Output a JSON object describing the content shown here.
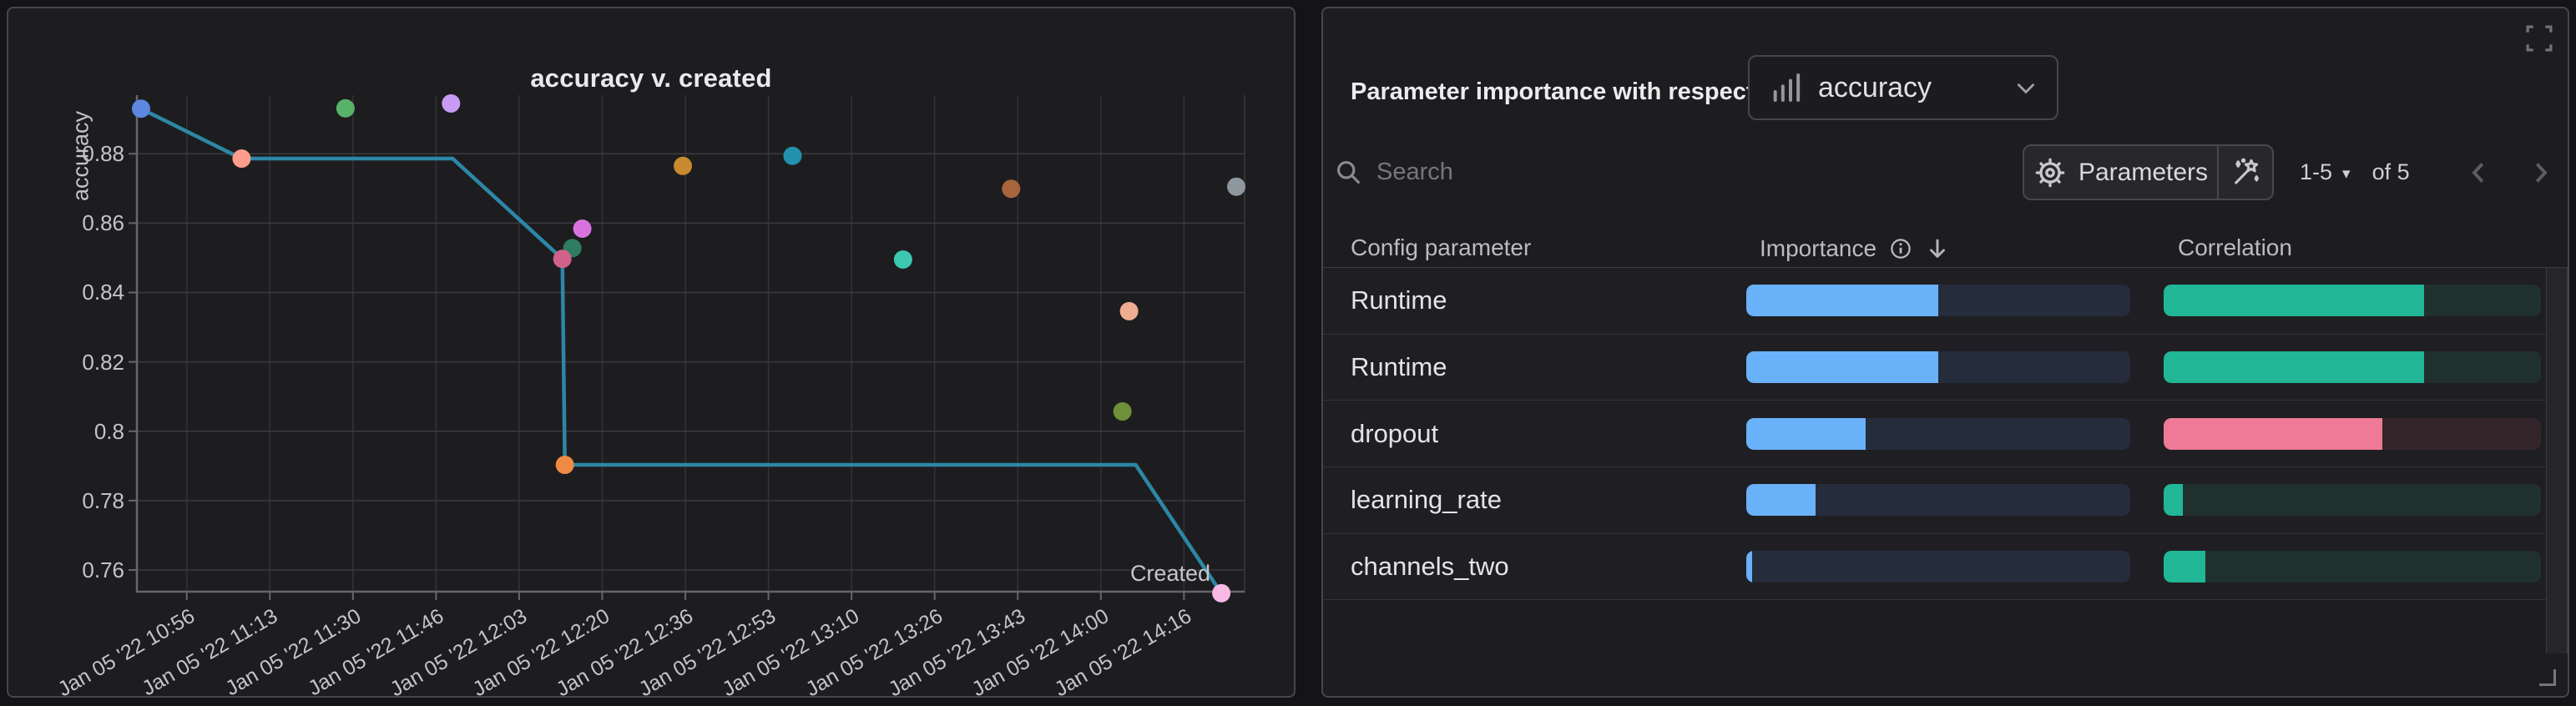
{
  "chart_data": {
    "type": "scatter",
    "title": "accuracy v. created",
    "xlabel": "Created",
    "ylabel": "accuracy",
    "x_tick_labels": [
      "Jan 05 '22 10:56",
      "Jan 05 '22 11:13",
      "Jan 05 '22 11:30",
      "Jan 05 '22 11:46",
      "Jan 05 '22 12:03",
      "Jan 05 '22 12:20",
      "Jan 05 '22 12:36",
      "Jan 05 '22 12:53",
      "Jan 05 '22 13:10",
      "Jan 05 '22 13:26",
      "Jan 05 '22 13:43",
      "Jan 05 '22 14:00",
      "Jan 05 '22 14:16"
    ],
    "x_range": [
      -0.61,
      12.73
    ],
    "y_ticks": [
      0.76,
      0.78,
      0.8,
      0.82,
      0.84,
      0.86,
      0.88
    ],
    "y_tick_labels": [
      "0.76",
      "0.78",
      "0.8",
      "0.82",
      "0.84",
      "0.86",
      "0.88"
    ],
    "y_range": [
      0.7535,
      0.8969
    ],
    "grid": true,
    "legend": "none",
    "line": {
      "color": "#2d87a6",
      "points": [
        [
          -0.55,
          0.893
        ],
        [
          0.66,
          0.8786
        ],
        [
          3.2,
          0.8786
        ],
        [
          4.52,
          0.8497
        ],
        [
          4.55,
          0.7903
        ],
        [
          11.42,
          0.7903
        ],
        [
          12.45,
          0.7533
        ]
      ]
    },
    "points": [
      {
        "x": -0.55,
        "y": 0.893,
        "color": "#5d87e0"
      },
      {
        "x": 0.66,
        "y": 0.8786,
        "color": "#fe9d8b"
      },
      {
        "x": 1.91,
        "y": 0.8931,
        "color": "#58b268"
      },
      {
        "x": 3.18,
        "y": 0.8945,
        "color": "#c89bf5"
      },
      {
        "x": 4.76,
        "y": 0.8584,
        "color": "#d873dd"
      },
      {
        "x": 4.64,
        "y": 0.8528,
        "color": "#2e7d60"
      },
      {
        "x": 4.52,
        "y": 0.8497,
        "color": "#d06289"
      },
      {
        "x": 4.55,
        "y": 0.7903,
        "color": "#ef8a44"
      },
      {
        "x": 5.97,
        "y": 0.8765,
        "color": "#c88a2f"
      },
      {
        "x": 7.29,
        "y": 0.8794,
        "color": "#2391ad"
      },
      {
        "x": 8.62,
        "y": 0.8495,
        "color": "#3cc8b0"
      },
      {
        "x": 9.92,
        "y": 0.8699,
        "color": "#a8653c"
      },
      {
        "x": 11.34,
        "y": 0.8346,
        "color": "#eeac92"
      },
      {
        "x": 11.26,
        "y": 0.8057,
        "color": "#6d9038"
      },
      {
        "x": 12.63,
        "y": 0.8705,
        "color": "#8e979e"
      },
      {
        "x": 12.45,
        "y": 0.7533,
        "color": "#f9b9e5"
      }
    ]
  },
  "right_panel": {
    "header_label": "Parameter importance with respect to",
    "metric_select": {
      "value": "accuracy",
      "icon": "bar-chart-icon"
    },
    "search": {
      "placeholder": "Search"
    },
    "parameters_button_label": "Parameters",
    "pagination": {
      "range": "1-5",
      "of_label": "of 5"
    },
    "table": {
      "columns": {
        "parameter": "Config parameter",
        "importance": "Importance",
        "correlation": "Correlation"
      },
      "sort": {
        "column": "importance",
        "direction": "desc"
      },
      "rows": [
        {
          "name": "Runtime",
          "importance": 0.5,
          "correlation": 0.69,
          "correlation_negative": false
        },
        {
          "name": "Runtime",
          "importance": 0.5,
          "correlation": 0.69,
          "correlation_negative": false
        },
        {
          "name": "dropout",
          "importance": 0.31,
          "correlation": 0.58,
          "correlation_negative": true
        },
        {
          "name": "learning_rate",
          "importance": 0.18,
          "correlation": 0.05,
          "correlation_negative": false
        },
        {
          "name": "channels_two",
          "importance": 0.015,
          "correlation": 0.11,
          "correlation_negative": false
        }
      ]
    },
    "colors": {
      "importance_fill": "#69b1f8",
      "correlation_positive_fill": "#21b695",
      "correlation_negative_fill": "#ee7a96"
    }
  }
}
